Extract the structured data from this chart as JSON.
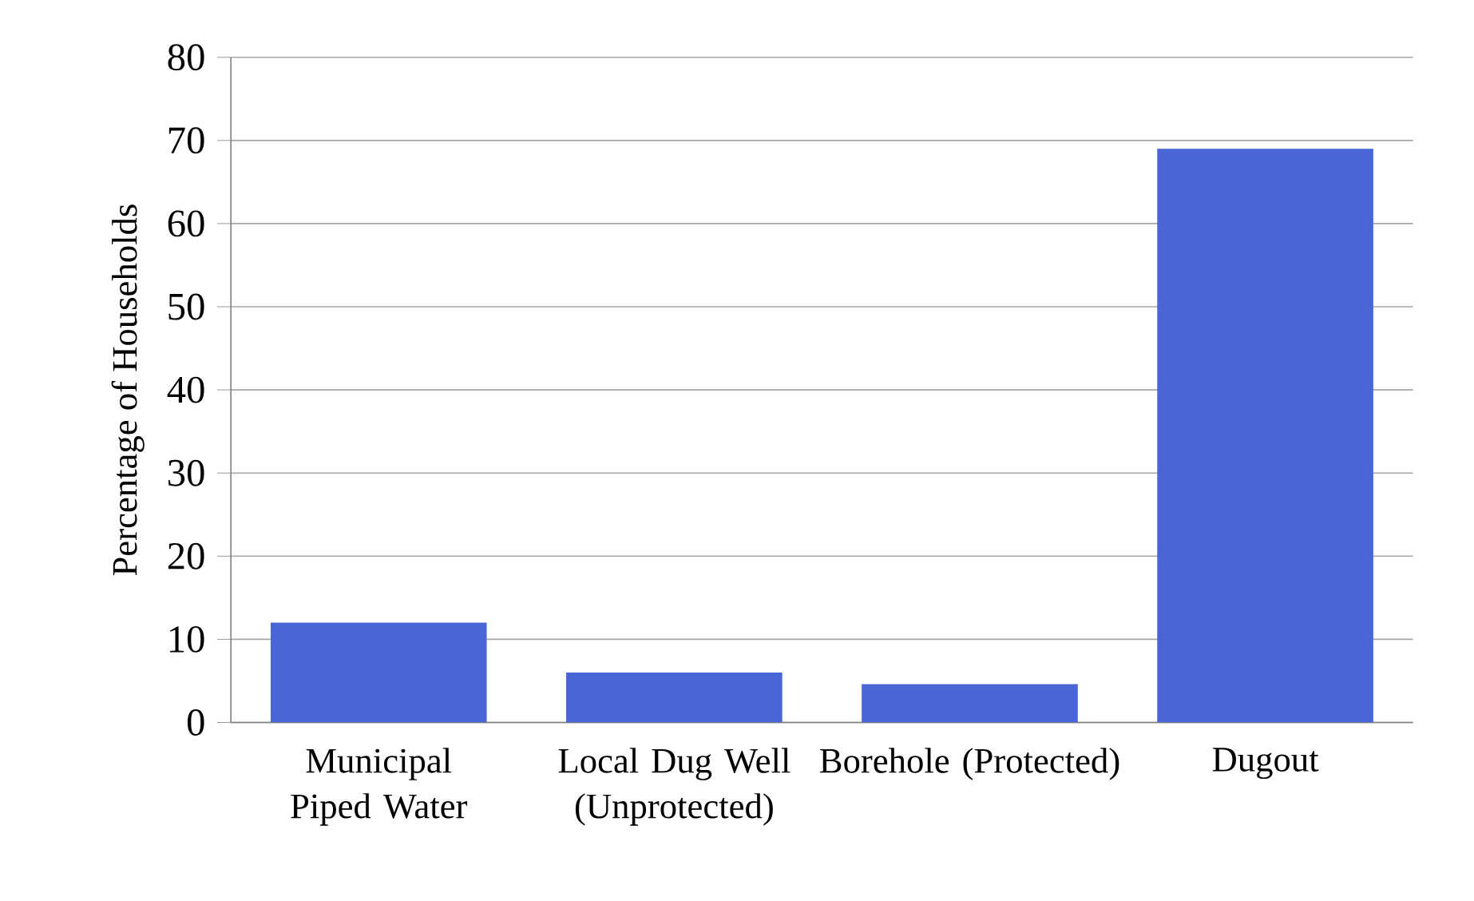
{
  "chart_data": {
    "type": "bar",
    "ylabel": "Percentage of Households",
    "categories": [
      "Municipal Piped Water",
      "Local Dug Well (Unprotected)",
      "Borehole (Protected)",
      "Dugout"
    ],
    "values": [
      12,
      6,
      4.6,
      69
    ],
    "color": "#4a66d4",
    "ylim": [
      0,
      80
    ],
    "yticks": [
      0,
      10,
      20,
      30,
      40,
      50,
      60,
      70,
      80
    ],
    "grid": "y"
  }
}
